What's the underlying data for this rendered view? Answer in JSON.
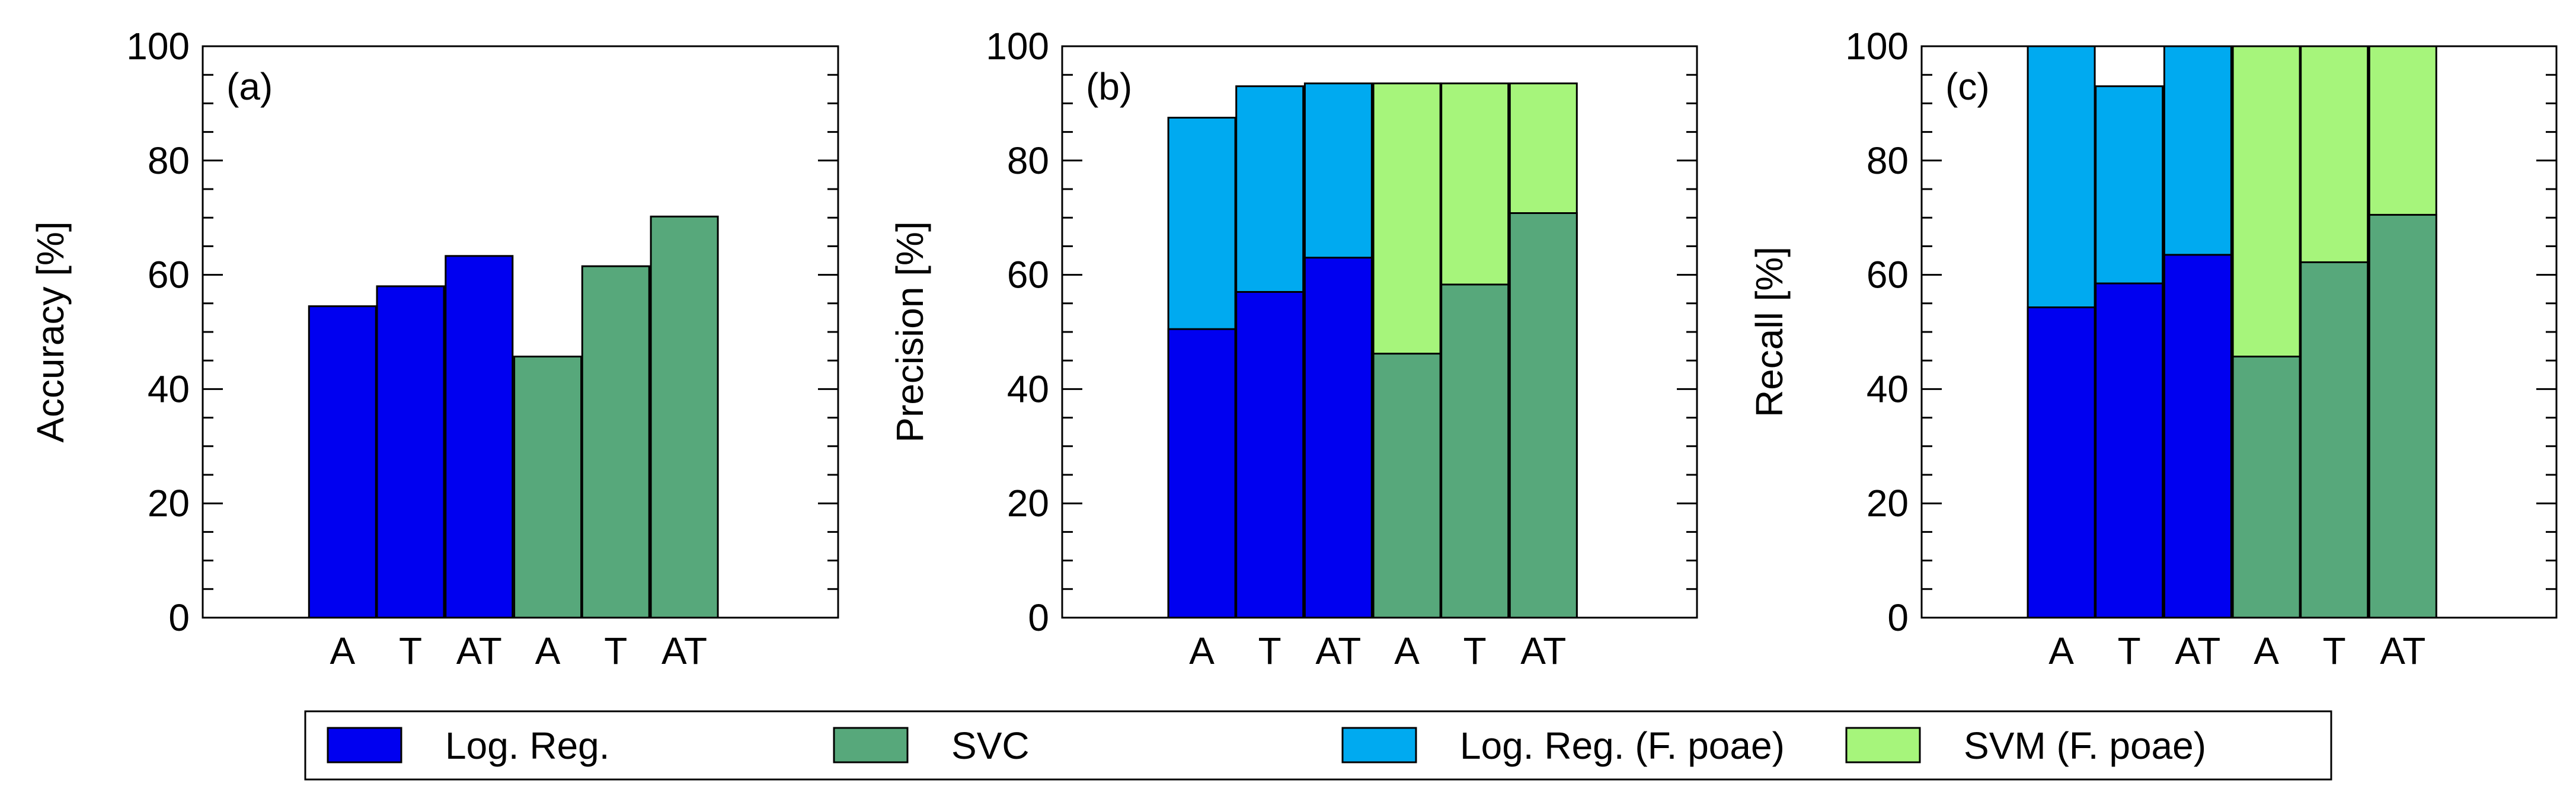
{
  "colors": {
    "log_reg": "#0000f0",
    "svc": "#57a87b",
    "log_reg_fpoae": "#00aaf0",
    "svm_fpoae": "#a6f57b"
  },
  "chart_data": [
    {
      "type": "bar",
      "panel": "(a)",
      "ylabel": "Accuracy [%]",
      "ylim": [
        0,
        100
      ],
      "yticks": [
        "0",
        "20",
        "40",
        "60",
        "80",
        "100"
      ],
      "categories": [
        "A",
        "T",
        "AT",
        "A",
        "T",
        "AT"
      ],
      "series": [
        {
          "name": "Log. Reg.",
          "values": [
            54.5,
            58,
            63.3,
            null,
            null,
            null
          ]
        },
        {
          "name": "SVC",
          "values": [
            null,
            null,
            null,
            45.7,
            61.5,
            70.2
          ]
        }
      ]
    },
    {
      "type": "bar",
      "panel": "(b)",
      "ylabel": "Precision [%]",
      "ylim": [
        0,
        100
      ],
      "yticks": [
        "0",
        "20",
        "40",
        "60",
        "80",
        "100"
      ],
      "categories": [
        "A",
        "T",
        "AT",
        "A",
        "T",
        "AT"
      ],
      "series": [
        {
          "name": "Log. Reg. (F. poae)",
          "values": [
            87.5,
            93,
            93.5,
            null,
            null,
            null
          ]
        },
        {
          "name": "SVM (F. poae)",
          "values": [
            null,
            null,
            null,
            93.5,
            93.5,
            93.5
          ]
        },
        {
          "name": "Log. Reg.",
          "values": [
            50.5,
            57,
            63,
            null,
            null,
            null
          ]
        },
        {
          "name": "SVC",
          "values": [
            null,
            null,
            null,
            46.2,
            58.3,
            70.8
          ]
        }
      ]
    },
    {
      "type": "bar",
      "panel": "(c)",
      "ylabel": "Recall [%]",
      "ylim": [
        0,
        100
      ],
      "yticks": [
        "0",
        "20",
        "40",
        "60",
        "80",
        "100"
      ],
      "categories": [
        "A",
        "T",
        "AT",
        "A",
        "T",
        "AT"
      ],
      "series": [
        {
          "name": "Log. Reg. (F. poae)",
          "values": [
            100,
            93,
            100,
            null,
            null,
            null
          ]
        },
        {
          "name": "SVM (F. poae)",
          "values": [
            null,
            null,
            null,
            100,
            100,
            100
          ]
        },
        {
          "name": "Log. Reg.",
          "values": [
            54.3,
            58.5,
            63.5,
            null,
            null,
            null
          ]
        },
        {
          "name": "SVC",
          "values": [
            null,
            null,
            null,
            45.7,
            62.2,
            70.5
          ]
        }
      ]
    }
  ],
  "legend": {
    "items": [
      {
        "label": "Log. Reg.",
        "color_key": "log_reg"
      },
      {
        "label": "SVC",
        "color_key": "svc"
      },
      {
        "label": "Log. Reg. (F. poae)",
        "color_key": "log_reg_fpoae"
      },
      {
        "label": "SVM (F. poae)",
        "color_key": "svm_fpoae"
      }
    ]
  }
}
